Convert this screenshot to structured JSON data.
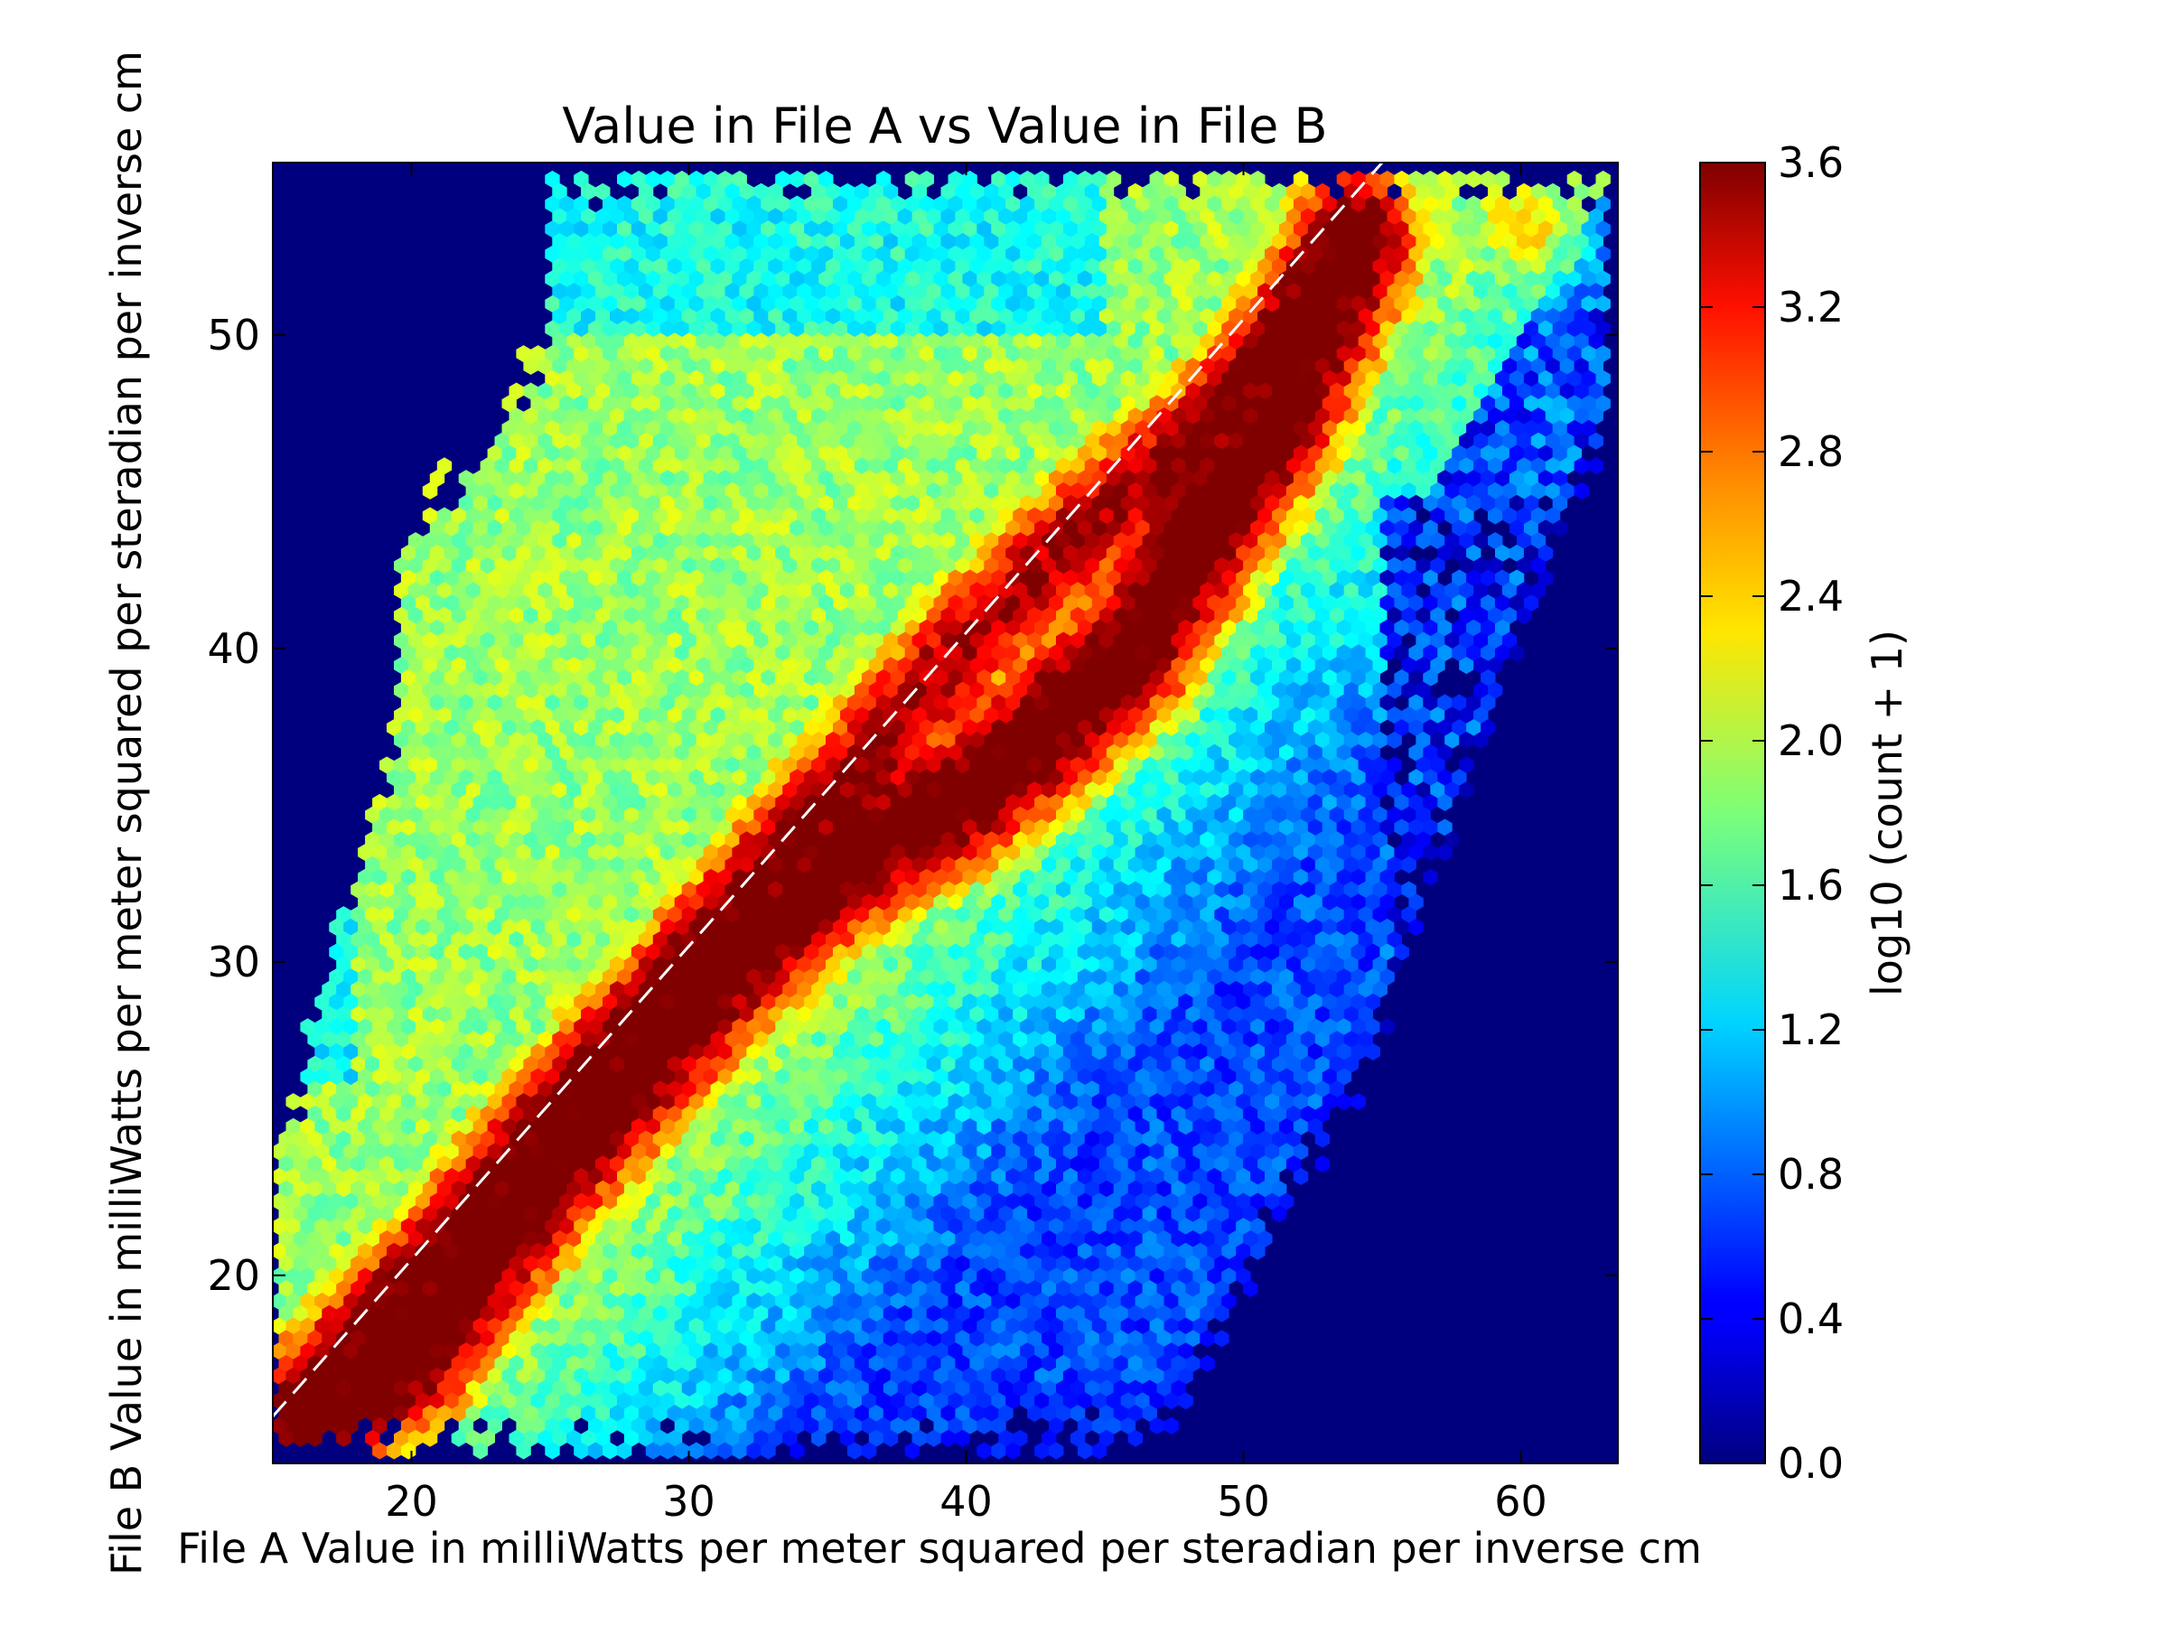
{
  "chart_data": {
    "type": "heatmap",
    "subtype": "hexbin",
    "title": "Value in File A vs Value in File B",
    "xlabel": "File A Value in milliWatts per meter squared per steradian per inverse cm",
    "ylabel": "File B Value in milliWatts per meter squared per steradian per inverse cm",
    "xlim": [
      15,
      63.5
    ],
    "ylim": [
      14,
      55.5
    ],
    "xticks": [
      20,
      30,
      40,
      50,
      60
    ],
    "yticks": [
      20,
      30,
      40,
      50
    ],
    "colorbar": {
      "label": "log10 (count + 1)",
      "range": [
        0,
        3.6
      ],
      "ticks": [
        0.0,
        0.4,
        0.8,
        1.2,
        1.6,
        2.0,
        2.4,
        2.8,
        3.2,
        3.6
      ],
      "tick_labels": [
        "0.0",
        "0.4",
        "0.8",
        "1.2",
        "1.6",
        "2.0",
        "2.4",
        "2.8",
        "3.2",
        "3.6"
      ],
      "colormap": "jet"
    },
    "reference_line": {
      "style": "dashed",
      "color": "#ffffff",
      "from": [
        15,
        15.5
      ],
      "to": [
        55,
        55.5
      ]
    },
    "background_color": "#00007f",
    "density_ridges": [
      {
        "name": "main-ridge",
        "points": [
          [
            16.5,
            15.2
          ],
          [
            20,
            17.5
          ],
          [
            22,
            20
          ],
          [
            25,
            23.5
          ],
          [
            28,
            26.5
          ],
          [
            31,
            29.5
          ],
          [
            34,
            32
          ],
          [
            37,
            34
          ],
          [
            40,
            35.3
          ],
          [
            43,
            37.5
          ],
          [
            46,
            40
          ],
          [
            49,
            44.5
          ],
          [
            51,
            47
          ],
          [
            53,
            51
          ],
          [
            54,
            53
          ]
        ],
        "peak": 3.5
      },
      {
        "name": "diagonal-ridge",
        "points": [
          [
            16,
            16
          ],
          [
            20,
            19.8
          ],
          [
            25,
            25
          ],
          [
            30,
            30
          ],
          [
            35,
            35.2
          ],
          [
            40,
            40.2
          ],
          [
            45,
            44.5
          ],
          [
            48,
            46.5
          ],
          [
            50,
            48.5
          ],
          [
            53,
            52
          ]
        ],
        "peak": 3.1
      }
    ],
    "density_clusters": [
      {
        "x": 48.5,
        "y": 46.5,
        "value": 3.4
      },
      {
        "x": 52.5,
        "y": 50.5,
        "value": 3.4
      },
      {
        "x": 21,
        "y": 18.5,
        "value": 3.5
      },
      {
        "x": 39,
        "y": 34.5,
        "value": 3.1
      },
      {
        "x": 60,
        "y": 53.5,
        "value": 2.4
      }
    ],
    "background_density": 1.9
  }
}
